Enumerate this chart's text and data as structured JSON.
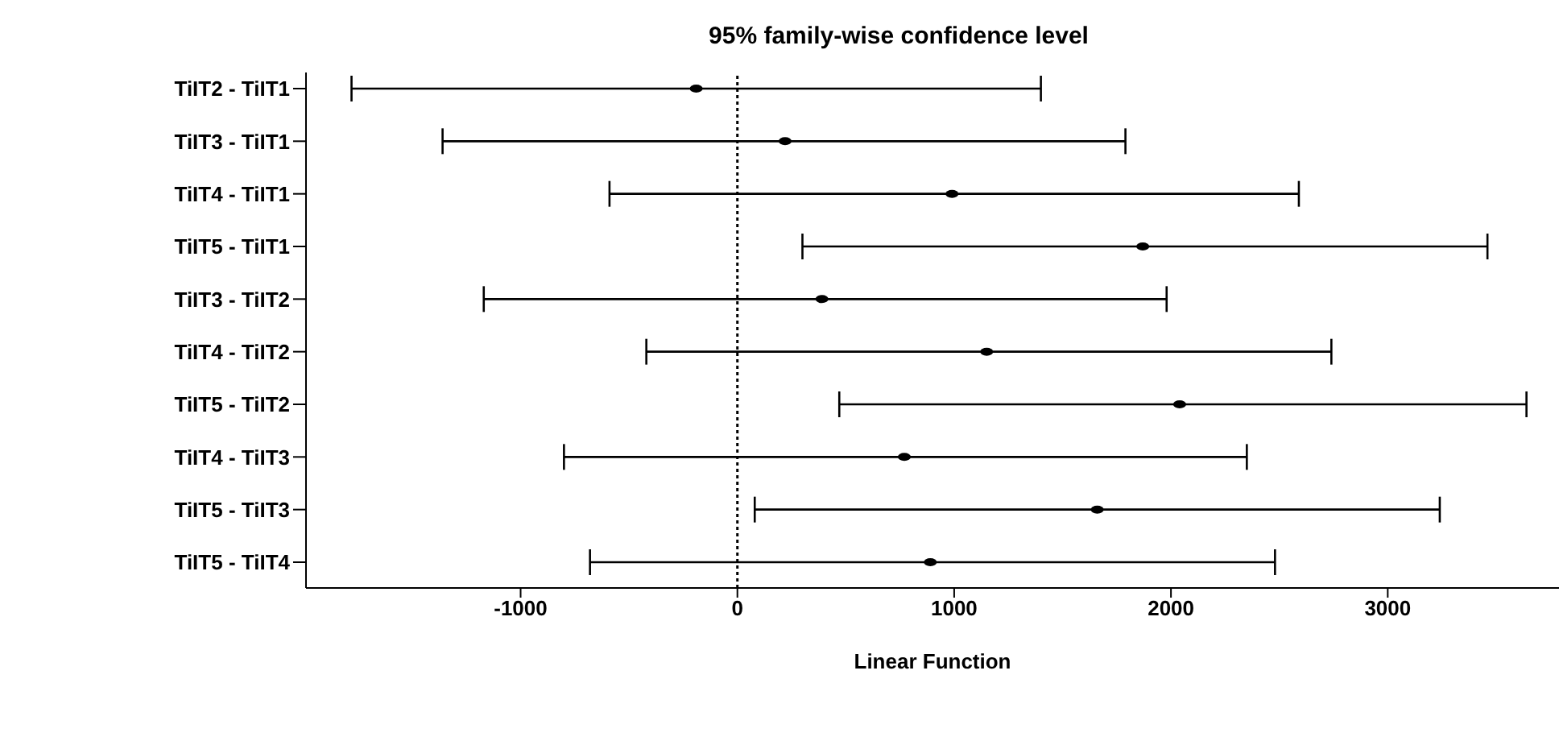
{
  "chart_data": {
    "type": "scatter",
    "orientation": "horizontal",
    "title": "95% family-wise confidence level",
    "xlabel": "Linear Function",
    "categories": [
      "TiIT2 - TiIT1",
      "TiIT3 - TiIT1",
      "TiIT4 - TiIT1",
      "TiIT5 - TiIT1",
      "TiIT3 - TiIT2",
      "TiIT4 - TiIT2",
      "TiIT5 - TiIT2",
      "TiIT4 - TiIT3",
      "TiIT5 - TiIT3",
      "TiIT5 - TiIT4"
    ],
    "values": [
      -190,
      220,
      990,
      1870,
      390,
      1150,
      2040,
      770,
      1660,
      890
    ],
    "errors": [
      [
        -1780,
        1400
      ],
      [
        -1360,
        1790
      ],
      [
        -590,
        2590
      ],
      [
        300,
        3460
      ],
      [
        -1170,
        1980
      ],
      [
        -420,
        2740
      ],
      [
        470,
        3640
      ],
      [
        -800,
        2350
      ],
      [
        80,
        3240
      ],
      [
        -680,
        2480
      ]
    ],
    "color": "#000000",
    "marker": "circle",
    "xlim": [
      -1990,
      3790
    ],
    "xticks": [
      -1000,
      0,
      1000,
      2000,
      3000
    ],
    "ref_lines": [
      {
        "axis": "x",
        "value": 0,
        "line_style": "dotted",
        "color": "#000000"
      }
    ],
    "grid": false
  }
}
